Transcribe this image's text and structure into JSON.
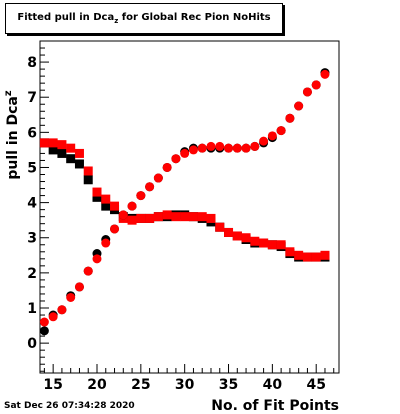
{
  "chart_data": {
    "type": "scatter",
    "title_main": "Fitted pull in Dca",
    "title_sub": "z",
    "title_tail": " for Global Rec Pion NoHits",
    "xlabel": "No. of Fit Points",
    "ylabel": "pull in Dca",
    "ylabel_sub": "z",
    "xlim": [
      13.5,
      47.6
    ],
    "ylim": [
      -0.85,
      8.6
    ],
    "xticks": [
      15,
      20,
      25,
      30,
      35,
      40,
      45
    ],
    "yticks": [
      0,
      1,
      2,
      3,
      4,
      5,
      6,
      7,
      8
    ],
    "grid": false,
    "series": [
      {
        "color": "#000000",
        "marker": "square",
        "x": [
          14,
          15,
          16,
          17,
          18,
          19,
          20,
          21,
          22,
          23,
          24,
          25,
          26,
          27,
          28,
          29,
          30,
          31,
          32,
          33,
          34,
          35,
          36,
          37,
          38,
          39,
          40,
          41,
          42,
          43,
          44,
          45,
          46
        ],
        "y": [
          5.7,
          5.5,
          5.4,
          5.25,
          5.1,
          4.65,
          4.15,
          3.9,
          3.8,
          3.6,
          3.55,
          3.55,
          3.55,
          3.6,
          3.6,
          3.65,
          3.65,
          3.6,
          3.55,
          3.45,
          3.3,
          3.15,
          3.05,
          2.95,
          2.85,
          2.85,
          2.8,
          2.75,
          2.55,
          2.45,
          2.45,
          2.45,
          2.45
        ]
      },
      {
        "color": "#ff0000",
        "marker": "square",
        "x": [
          14,
          15,
          16,
          17,
          18,
          19,
          20,
          21,
          22,
          23,
          24,
          25,
          26,
          27,
          28,
          29,
          30,
          31,
          32,
          33,
          34,
          35,
          36,
          37,
          38,
          39,
          40,
          41,
          42,
          43,
          44,
          45,
          46
        ],
        "y": [
          5.7,
          5.7,
          5.65,
          5.55,
          5.4,
          4.9,
          4.3,
          4.1,
          3.9,
          3.55,
          3.5,
          3.55,
          3.55,
          3.6,
          3.65,
          3.6,
          3.6,
          3.6,
          3.6,
          3.55,
          3.3,
          3.15,
          3.05,
          3.0,
          2.9,
          2.85,
          2.8,
          2.8,
          2.6,
          2.5,
          2.45,
          2.45,
          2.5
        ]
      },
      {
        "color": "#000000",
        "marker": "circle",
        "x": [
          14,
          15,
          16,
          17,
          18,
          19,
          20,
          21,
          22,
          23,
          24,
          25,
          26,
          27,
          28,
          29,
          30,
          31,
          32,
          33,
          34,
          35,
          36,
          37,
          38,
          39,
          40,
          41,
          42,
          43,
          44,
          45,
          46
        ],
        "y": [
          0.35,
          0.8,
          0.95,
          1.35,
          1.6,
          2.05,
          2.55,
          2.95,
          3.25,
          3.65,
          3.9,
          4.2,
          4.45,
          4.7,
          5.0,
          5.25,
          5.45,
          5.55,
          5.55,
          5.55,
          5.55,
          5.55,
          5.55,
          5.55,
          5.6,
          5.7,
          5.85,
          6.05,
          6.4,
          6.75,
          7.15,
          7.35,
          7.7
        ]
      },
      {
        "color": "#ff0000",
        "marker": "circle",
        "x": [
          14,
          15,
          16,
          17,
          18,
          19,
          20,
          21,
          22,
          23,
          24,
          25,
          26,
          27,
          28,
          29,
          30,
          31,
          32,
          33,
          34,
          35,
          36,
          37,
          38,
          39,
          40,
          41,
          42,
          43,
          44,
          45,
          46
        ],
        "y": [
          0.6,
          0.75,
          0.95,
          1.3,
          1.6,
          2.05,
          2.4,
          2.85,
          3.25,
          3.65,
          3.9,
          4.2,
          4.45,
          4.7,
          5.0,
          5.25,
          5.4,
          5.5,
          5.55,
          5.6,
          5.6,
          5.55,
          5.55,
          5.55,
          5.6,
          5.75,
          5.9,
          6.05,
          6.4,
          6.75,
          7.15,
          7.35,
          7.65
        ]
      }
    ]
  },
  "footer": {
    "timestamp": "Sat Dec 26 07:34:28 2020"
  }
}
